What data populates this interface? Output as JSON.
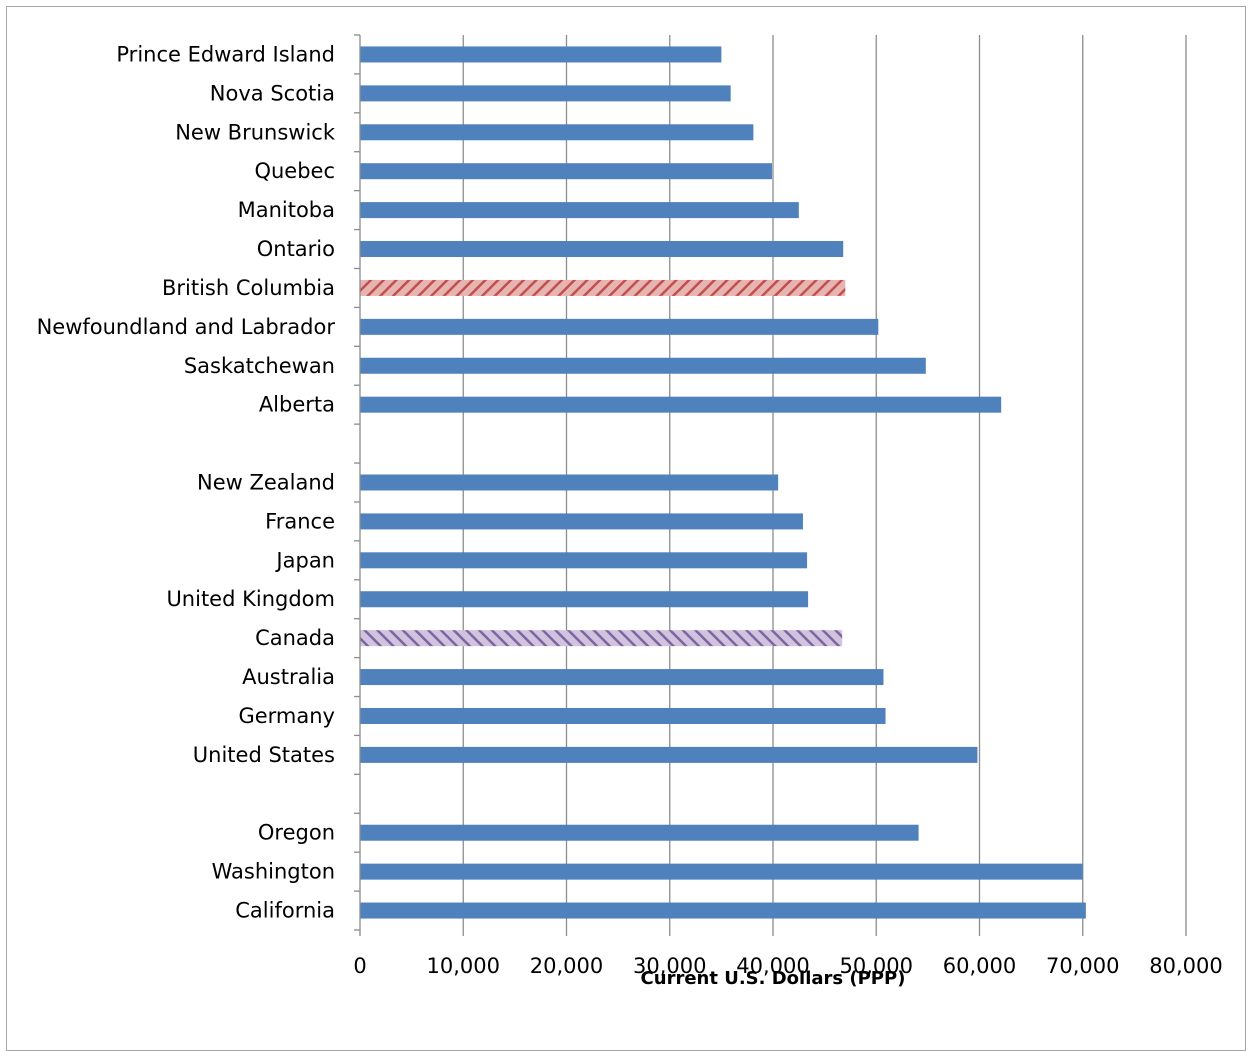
{
  "chart_data": {
    "type": "bar",
    "orientation": "horizontal",
    "title": "",
    "xlabel": "Current U.S. Dollars (PPP)",
    "ylabel": "",
    "xlim": [
      0,
      80000
    ],
    "x_ticks": [
      "0",
      "10,000",
      "20,000",
      "30,000",
      "40,000",
      "50,000",
      "60,000",
      "70,000",
      "80,000"
    ],
    "grid": "vertical",
    "legend": "none",
    "colors": {
      "bar": "#4f81bd",
      "highlight_bc": "#c0504d",
      "highlight_canada": "#8064a2"
    },
    "categories": [
      "Prince Edward Island",
      "Nova Scotia",
      "New Brunswick",
      "Quebec",
      "Manitoba",
      "Ontario",
      "British Columbia",
      "Newfoundland and Labrador",
      "Saskatchewan",
      "Alberta",
      "",
      "New Zealand",
      "France",
      "Japan",
      "United Kingdom",
      "Canada",
      "Australia",
      "Germany",
      "United States",
      "",
      "Oregon",
      "Washington",
      "California"
    ],
    "values": [
      35000,
      35900,
      38100,
      39900,
      42500,
      46800,
      47000,
      50200,
      54800,
      62100,
      null,
      40500,
      42900,
      43300,
      43400,
      46700,
      50700,
      50900,
      59800,
      null,
      54100,
      70000,
      70300
    ],
    "highlights": {
      "British Columbia": "highlight_bc",
      "Canada": "highlight_canada"
    }
  }
}
